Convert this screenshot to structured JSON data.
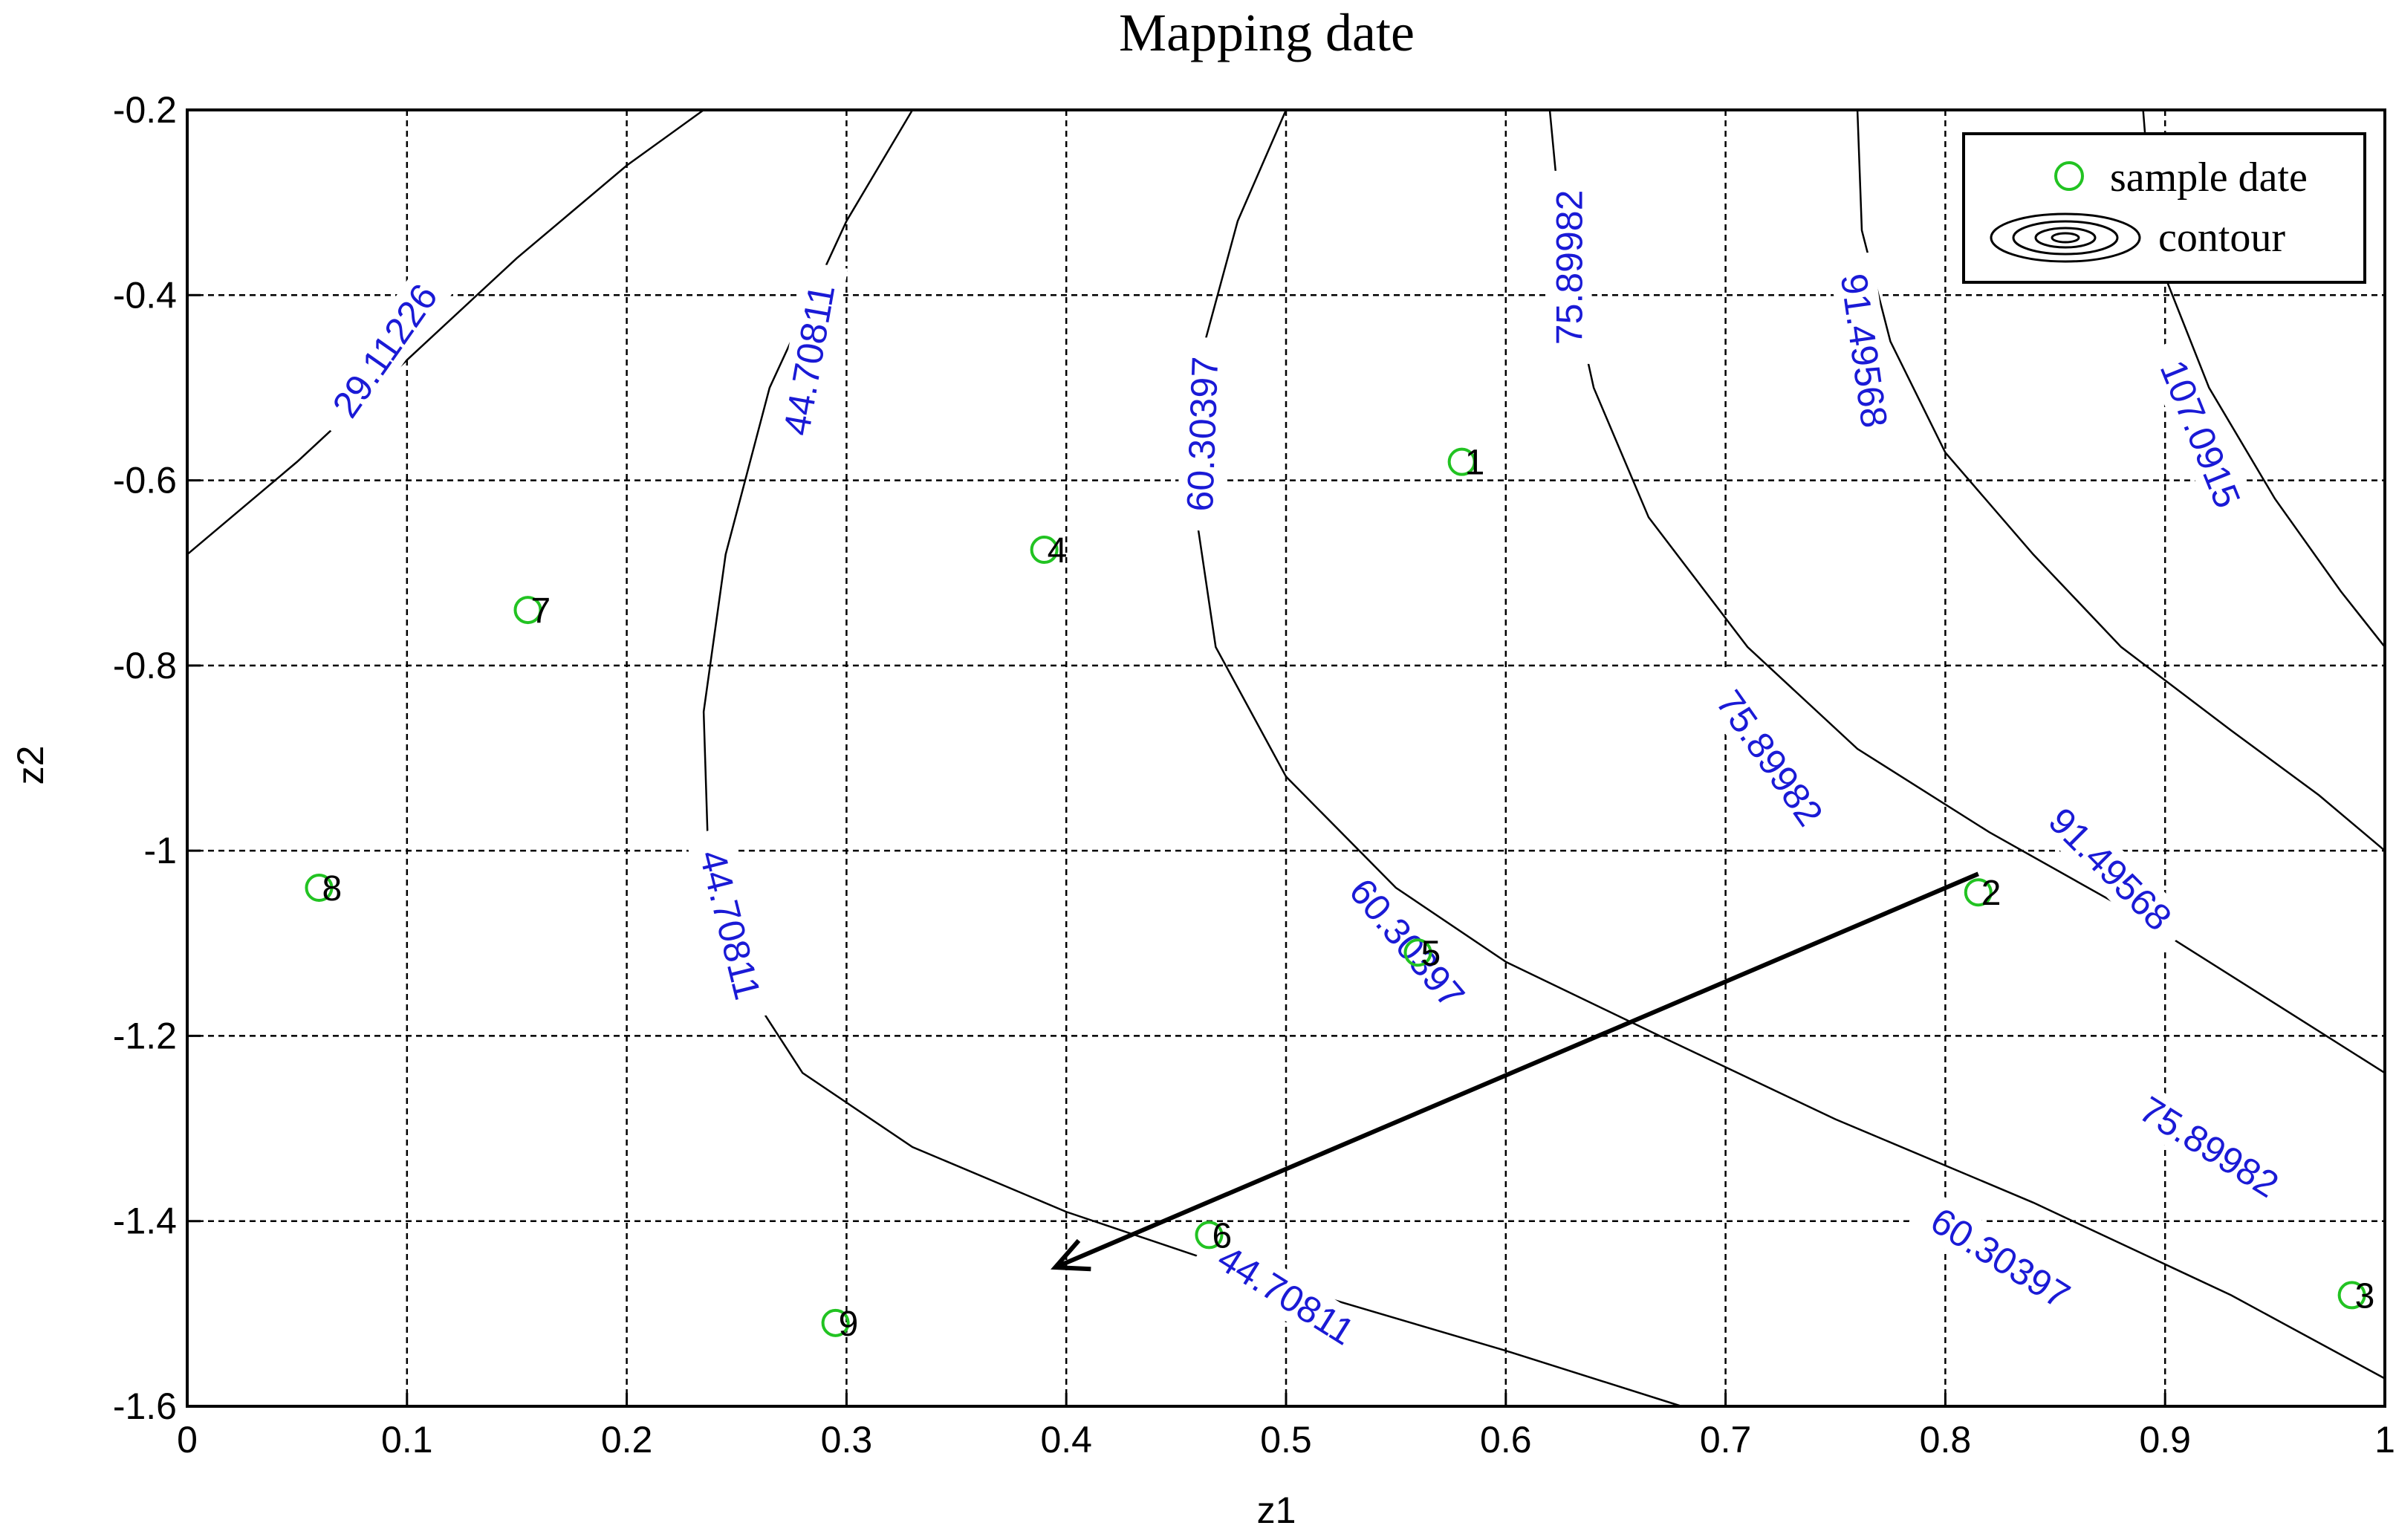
{
  "chart_data": {
    "type": "scatter",
    "title": "Mapping date",
    "xlabel": "z1",
    "ylabel": "z2",
    "xlim": [
      0,
      1
    ],
    "ylim": [
      -1.6,
      -0.2
    ],
    "grid": true,
    "x_ticks": [
      "0",
      "0.1",
      "0.2",
      "0.3",
      "0.4",
      "0.5",
      "0.6",
      "0.7",
      "0.8",
      "0.9",
      "1"
    ],
    "y_ticks": [
      "-0.2",
      "-0.4",
      "-0.6",
      "-0.8",
      "-1",
      "-1.2",
      "-1.4",
      "-1.6"
    ],
    "legend": {
      "position": "top-right",
      "entries": [
        "sample date",
        "contour"
      ]
    },
    "colors": {
      "samples": "#22c322",
      "contour_labels": "#1a1ad6",
      "lines": "#000000"
    },
    "samples": [
      {
        "label": "1",
        "x": 0.58,
        "y": -0.58
      },
      {
        "label": "2",
        "x": 0.815,
        "y": -1.045
      },
      {
        "label": "3",
        "x": 0.985,
        "y": -1.48
      },
      {
        "label": "4",
        "x": 0.39,
        "y": -0.675
      },
      {
        "label": "5",
        "x": 0.56,
        "y": -1.11
      },
      {
        "label": "6",
        "x": 0.465,
        "y": -1.415
      },
      {
        "label": "7",
        "x": 0.155,
        "y": -0.74
      },
      {
        "label": "8",
        "x": 0.06,
        "y": -1.04
      },
      {
        "label": "9",
        "x": 0.295,
        "y": -1.51
      }
    ],
    "contours": [
      {
        "level": "29.11226",
        "points": [
          [
            0,
            -0.68
          ],
          [
            0.05,
            -0.58
          ],
          [
            0.1,
            -0.47
          ],
          [
            0.15,
            -0.36
          ],
          [
            0.2,
            -0.26
          ],
          [
            0.235,
            -0.2
          ]
        ],
        "labels": [
          {
            "x": 0.09,
            "y": -0.46,
            "angle": -55
          }
        ]
      },
      {
        "level": "44.70811",
        "points": [
          [
            0.33,
            -0.2
          ],
          [
            0.3,
            -0.32
          ],
          [
            0.265,
            -0.5
          ],
          [
            0.245,
            -0.68
          ],
          [
            0.235,
            -0.85
          ],
          [
            0.237,
            -1.0
          ],
          [
            0.25,
            -1.13
          ],
          [
            0.28,
            -1.24
          ],
          [
            0.33,
            -1.32
          ],
          [
            0.4,
            -1.39
          ],
          [
            0.5,
            -1.47
          ],
          [
            0.6,
            -1.54
          ],
          [
            0.68,
            -1.6
          ]
        ],
        "labels": [
          {
            "x": 0.283,
            "y": -0.47,
            "angle": -80
          },
          {
            "x": 0.247,
            "y": -1.08,
            "angle": 76
          },
          {
            "x": 0.5,
            "y": -1.48,
            "angle": 32
          }
        ]
      },
      {
        "level": "60.30397",
        "points": [
          [
            0.5,
            -0.2
          ],
          [
            0.478,
            -0.32
          ],
          [
            0.462,
            -0.46
          ],
          [
            0.458,
            -0.62
          ],
          [
            0.468,
            -0.78
          ],
          [
            0.5,
            -0.92
          ],
          [
            0.55,
            -1.04
          ],
          [
            0.6,
            -1.12
          ],
          [
            0.67,
            -1.2
          ],
          [
            0.75,
            -1.29
          ],
          [
            0.84,
            -1.38
          ],
          [
            0.93,
            -1.48
          ],
          [
            1.0,
            -1.57
          ]
        ],
        "labels": [
          {
            "x": 0.462,
            "y": -0.55,
            "angle": -88
          },
          {
            "x": 0.555,
            "y": -1.1,
            "angle": 50
          },
          {
            "x": 0.825,
            "y": -1.44,
            "angle": 32
          }
        ]
      },
      {
        "level": "75.89982",
        "points": [
          [
            0.62,
            -0.2
          ],
          [
            0.626,
            -0.35
          ],
          [
            0.64,
            -0.5
          ],
          [
            0.665,
            -0.64
          ],
          [
            0.71,
            -0.78
          ],
          [
            0.76,
            -0.89
          ],
          [
            0.82,
            -0.98
          ],
          [
            0.88,
            -1.06
          ],
          [
            0.94,
            -1.15
          ],
          [
            1.0,
            -1.24
          ]
        ],
        "labels": [
          {
            "x": 0.629,
            "y": -0.37,
            "angle": -90
          },
          {
            "x": 0.72,
            "y": -0.9,
            "angle": 55
          },
          {
            "x": 0.92,
            "y": -1.32,
            "angle": 32
          }
        ]
      },
      {
        "level": "91.49568",
        "points": [
          [
            0.76,
            -0.2
          ],
          [
            0.762,
            -0.33
          ],
          [
            0.775,
            -0.45
          ],
          [
            0.8,
            -0.57
          ],
          [
            0.84,
            -0.68
          ],
          [
            0.88,
            -0.78
          ],
          [
            0.93,
            -0.87
          ],
          [
            0.97,
            -0.94
          ],
          [
            1.0,
            -1.0
          ]
        ],
        "labels": [
          {
            "x": 0.763,
            "y": -0.46,
            "angle": 82
          },
          {
            "x": 0.875,
            "y": -1.02,
            "angle": 45
          }
        ]
      },
      {
        "level": "107.0915",
        "points": [
          [
            0.89,
            -0.2
          ],
          [
            0.895,
            -0.35
          ],
          [
            0.92,
            -0.5
          ],
          [
            0.95,
            -0.62
          ],
          [
            0.98,
            -0.72
          ],
          [
            1.0,
            -0.78
          ]
        ],
        "labels": [
          {
            "x": 0.916,
            "y": -0.55,
            "angle": 68
          }
        ]
      }
    ],
    "arrow": {
      "from": [
        0.815,
        -1.025
      ],
      "to": [
        0.395,
        -1.45
      ]
    }
  }
}
